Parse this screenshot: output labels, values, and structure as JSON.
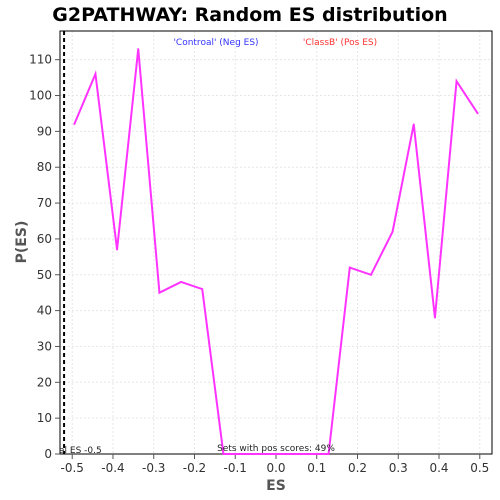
{
  "chart_data": {
    "type": "line",
    "title": "G2PATHWAY: Random ES distribution",
    "xlabel": "ES",
    "ylabel": "P(ES)",
    "xlim": [
      -0.53,
      0.53
    ],
    "ylim": [
      0,
      118
    ],
    "x_ticks": [
      -0.5,
      -0.4,
      -0.3,
      -0.2,
      -0.1,
      0.0,
      0.1,
      0.2,
      0.3,
      0.4,
      0.5
    ],
    "x_tick_labels": [
      "-0.5",
      "-0.4",
      "-0.3",
      "-0.2",
      "-0.1",
      "0.0",
      "0.1",
      "0.2",
      "0.3",
      "0.4",
      "0.5"
    ],
    "y_ticks": [
      0,
      10,
      20,
      30,
      40,
      50,
      60,
      70,
      80,
      90,
      100,
      110
    ],
    "y_tick_labels": [
      "0",
      "10",
      "20",
      "30",
      "40",
      "50",
      "60",
      "70",
      "80",
      "90",
      "100",
      "110"
    ],
    "grid": true,
    "legend": [
      {
        "label": "'Controal' (Neg ES)",
        "color": "#3333ff"
      },
      {
        "label": "'ClassB' (Pos ES)",
        "color": "#ff3333"
      }
    ],
    "series": [
      {
        "color": "#ff33ff",
        "x": [
          -0.495,
          -0.443,
          -0.39,
          -0.338,
          -0.286,
          -0.233,
          -0.181,
          -0.129,
          0.0,
          0.129,
          0.181,
          0.233,
          0.286,
          0.338,
          0.39,
          0.443,
          0.495
        ],
        "y": [
          92,
          106,
          57,
          113,
          45,
          48,
          46,
          0,
          0,
          0,
          52,
          50,
          62,
          92,
          38,
          104,
          95
        ]
      }
    ],
    "actual_es": -0.52,
    "annotations": {
      "actual_es": "al ES -0.5",
      "pos_scores": "Sets with pos scores: 49%"
    }
  }
}
